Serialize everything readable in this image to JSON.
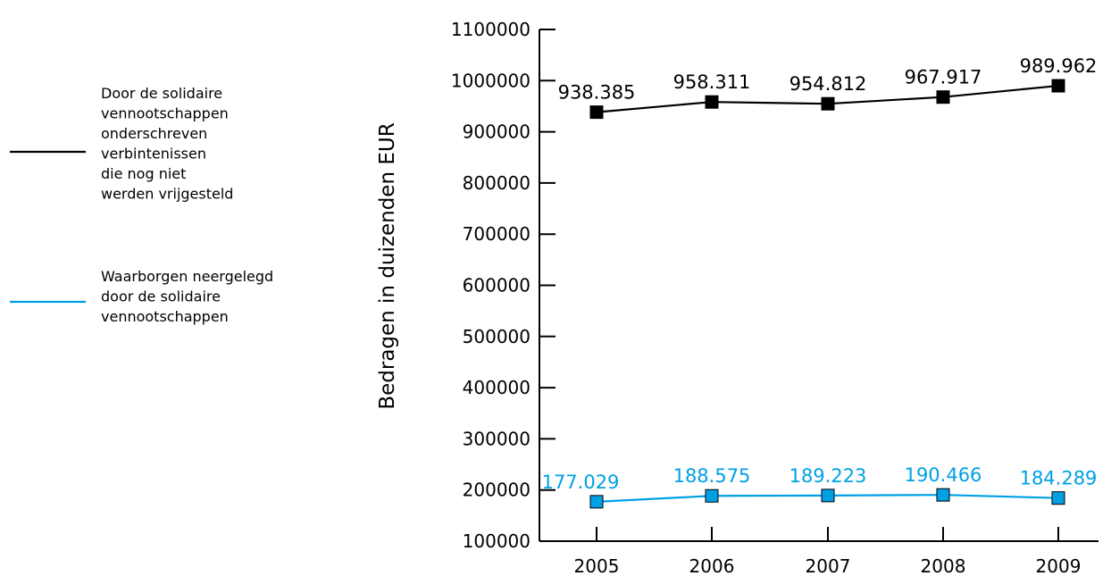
{
  "legend": {
    "entries": [
      {
        "lines": [
          "Door de solidaire",
          "vennootschappen",
          "onderschreven",
          "verbintenissen",
          "die nog niet",
          "werden vrijgesteld"
        ]
      },
      {
        "lines": [
          "Waarborgen neergelegd",
          "door de solidaire",
          "vennootschappen"
        ]
      }
    ]
  },
  "chart_data": {
    "type": "line",
    "x": [
      "2005",
      "2006",
      "2007",
      "2008",
      "2009"
    ],
    "ylabel": "Bedragen in duizenden EUR",
    "xlabel": "",
    "ylim": [
      100000,
      1100000
    ],
    "yticks": [
      "100000",
      "200000",
      "300000",
      "400000",
      "500000",
      "600000",
      "700000",
      "800000",
      "900000",
      "1000000",
      "1100000"
    ],
    "grid": false,
    "legend_position": "left",
    "series": [
      {
        "name": "Door de solidaire vennootschappen onderschreven verbintenissen die nog niet werden vrijgesteld",
        "color": "#000000",
        "marker": "square",
        "values": [
          938385,
          958311,
          954812,
          967917,
          989962
        ],
        "labels": [
          "938.385",
          "958.311",
          "954.812",
          "967.917",
          "989.962"
        ]
      },
      {
        "name": "Waarborgen neergelegd door de solidaire vennootschappen",
        "color": "#00a0e3",
        "marker": "square",
        "values": [
          177029,
          188575,
          189223,
          190466,
          184289
        ],
        "labels": [
          "177.029",
          "188.575",
          "189.223",
          "190.466",
          "184.289"
        ]
      }
    ]
  }
}
